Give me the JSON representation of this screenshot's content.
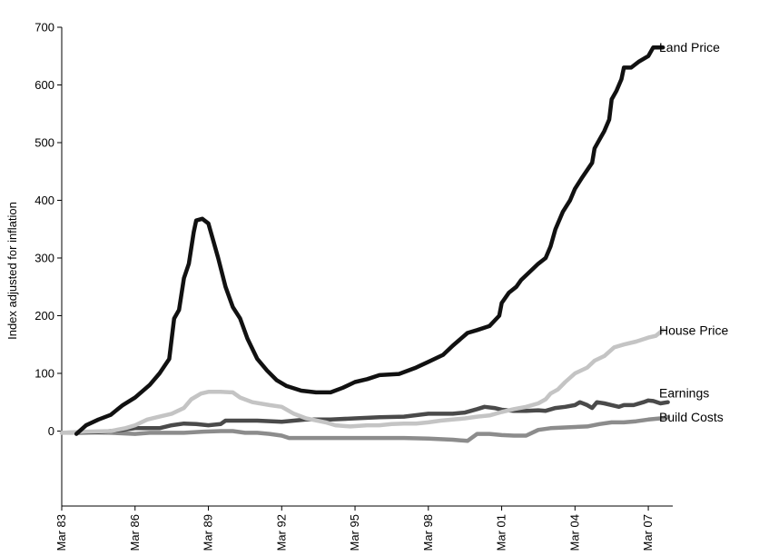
{
  "chart_data": {
    "type": "line",
    "ylabel": "Index adjusted for inflation",
    "ylim": [
      -130,
      700
    ],
    "yticks": [
      0,
      100,
      200,
      300,
      400,
      500,
      600,
      700
    ],
    "xlim": [
      1983.0,
      2008.0
    ],
    "xticks": [
      {
        "label": "Mar 83",
        "value": 1983.0
      },
      {
        "label": "Mar 86",
        "value": 1986.0
      },
      {
        "label": "Mar 89",
        "value": 1989.0
      },
      {
        "label": "Mar 92",
        "value": 1992.0
      },
      {
        "label": "Mar 95",
        "value": 1995.0
      },
      {
        "label": "Mar 98",
        "value": 1998.0
      },
      {
        "label": "Mar 01",
        "value": 2001.0
      },
      {
        "label": "Mar 04",
        "value": 2004.0
      },
      {
        "label": "Mar 07",
        "value": 2007.0
      }
    ],
    "series": [
      {
        "name": "Land Price",
        "color": "#111111",
        "width": 4.5,
        "points": [
          [
            1983.6,
            -5
          ],
          [
            1984.0,
            10
          ],
          [
            1984.5,
            20
          ],
          [
            1985.0,
            28
          ],
          [
            1985.5,
            45
          ],
          [
            1986.0,
            58
          ],
          [
            1986.6,
            80
          ],
          [
            1987.0,
            100
          ],
          [
            1987.4,
            125
          ],
          [
            1987.6,
            195
          ],
          [
            1987.8,
            210
          ],
          [
            1988.0,
            265
          ],
          [
            1988.2,
            290
          ],
          [
            1988.4,
            345
          ],
          [
            1988.5,
            365
          ],
          [
            1988.75,
            368
          ],
          [
            1989.0,
            360
          ],
          [
            1989.2,
            330
          ],
          [
            1989.4,
            300
          ],
          [
            1989.7,
            250
          ],
          [
            1990.0,
            215
          ],
          [
            1990.3,
            195
          ],
          [
            1990.6,
            160
          ],
          [
            1991.0,
            125
          ],
          [
            1991.4,
            105
          ],
          [
            1991.8,
            88
          ],
          [
            1992.2,
            78
          ],
          [
            1992.8,
            70
          ],
          [
            1993.4,
            67
          ],
          [
            1994.0,
            67
          ],
          [
            1994.5,
            75
          ],
          [
            1995.0,
            85
          ],
          [
            1995.5,
            90
          ],
          [
            1996.0,
            97
          ],
          [
            1996.8,
            99
          ],
          [
            1997.5,
            110
          ],
          [
            1998.0,
            120
          ],
          [
            1998.6,
            132
          ],
          [
            1999.0,
            148
          ],
          [
            1999.6,
            170
          ],
          [
            2000.0,
            175
          ],
          [
            2000.5,
            182
          ],
          [
            2000.9,
            200
          ],
          [
            2001.0,
            222
          ],
          [
            2001.3,
            240
          ],
          [
            2001.6,
            250
          ],
          [
            2001.8,
            262
          ],
          [
            2002.0,
            270
          ],
          [
            2002.2,
            278
          ],
          [
            2002.5,
            290
          ],
          [
            2002.8,
            300
          ],
          [
            2003.0,
            320
          ],
          [
            2003.2,
            350
          ],
          [
            2003.5,
            380
          ],
          [
            2003.8,
            400
          ],
          [
            2004.0,
            420
          ],
          [
            2004.3,
            440
          ],
          [
            2004.7,
            465
          ],
          [
            2004.8,
            490
          ],
          [
            2005.0,
            505
          ],
          [
            2005.2,
            520
          ],
          [
            2005.4,
            540
          ],
          [
            2005.5,
            575
          ],
          [
            2005.7,
            590
          ],
          [
            2005.9,
            610
          ],
          [
            2006.0,
            630
          ],
          [
            2006.3,
            630
          ],
          [
            2006.6,
            640
          ],
          [
            2007.0,
            650
          ],
          [
            2007.2,
            665
          ],
          [
            2007.6,
            665
          ]
        ]
      },
      {
        "name": "House Price",
        "color": "#c4c4c4",
        "width": 4.5,
        "points": [
          [
            1983.0,
            -3
          ],
          [
            1984.0,
            -1
          ],
          [
            1985.0,
            0
          ],
          [
            1985.6,
            5
          ],
          [
            1986.0,
            10
          ],
          [
            1986.5,
            20
          ],
          [
            1987.0,
            25
          ],
          [
            1987.5,
            30
          ],
          [
            1988.0,
            40
          ],
          [
            1988.3,
            55
          ],
          [
            1988.7,
            65
          ],
          [
            1989.0,
            68
          ],
          [
            1989.5,
            68
          ],
          [
            1990.0,
            67
          ],
          [
            1990.3,
            58
          ],
          [
            1990.8,
            50
          ],
          [
            1991.5,
            45
          ],
          [
            1992.0,
            42
          ],
          [
            1992.5,
            30
          ],
          [
            1993.0,
            22
          ],
          [
            1993.8,
            15
          ],
          [
            1994.2,
            10
          ],
          [
            1994.8,
            8
          ],
          [
            1995.5,
            10
          ],
          [
            1996.0,
            10
          ],
          [
            1996.5,
            12
          ],
          [
            1997.0,
            13
          ],
          [
            1997.5,
            13
          ],
          [
            1998.0,
            15
          ],
          [
            1998.5,
            18
          ],
          [
            1999.0,
            20
          ],
          [
            1999.5,
            22
          ],
          [
            2000.0,
            25
          ],
          [
            2000.5,
            27
          ],
          [
            2001.0,
            33
          ],
          [
            2001.5,
            38
          ],
          [
            2002.0,
            42
          ],
          [
            2002.5,
            48
          ],
          [
            2002.8,
            55
          ],
          [
            2003.0,
            65
          ],
          [
            2003.3,
            72
          ],
          [
            2003.6,
            85
          ],
          [
            2004.0,
            100
          ],
          [
            2004.5,
            110
          ],
          [
            2004.8,
            122
          ],
          [
            2005.2,
            130
          ],
          [
            2005.6,
            145
          ],
          [
            2006.0,
            150
          ],
          [
            2006.5,
            155
          ],
          [
            2007.0,
            162
          ],
          [
            2007.3,
            165
          ],
          [
            2007.6,
            175
          ]
        ]
      },
      {
        "name": "Earnings",
        "color": "#4a4a4a",
        "width": 4.5,
        "points": [
          [
            1983.6,
            -3
          ],
          [
            1984.5,
            -2
          ],
          [
            1985.0,
            0
          ],
          [
            1985.5,
            2
          ],
          [
            1986.0,
            5
          ],
          [
            1986.6,
            5
          ],
          [
            1987.0,
            5
          ],
          [
            1987.5,
            10
          ],
          [
            1988.0,
            13
          ],
          [
            1988.5,
            12
          ],
          [
            1989.0,
            10
          ],
          [
            1989.5,
            12
          ],
          [
            1989.7,
            18
          ],
          [
            1990.5,
            18
          ],
          [
            1991.0,
            18
          ],
          [
            1992.0,
            16
          ],
          [
            1992.5,
            18
          ],
          [
            1993.0,
            20
          ],
          [
            1994.0,
            20
          ],
          [
            1995.0,
            22
          ],
          [
            1996.0,
            24
          ],
          [
            1997.0,
            25
          ],
          [
            1998.0,
            30
          ],
          [
            1999.0,
            30
          ],
          [
            1999.5,
            32
          ],
          [
            2000.0,
            38
          ],
          [
            2000.3,
            42
          ],
          [
            2000.7,
            40
          ],
          [
            2001.0,
            37
          ],
          [
            2001.5,
            35
          ],
          [
            2002.0,
            35
          ],
          [
            2002.5,
            36
          ],
          [
            2002.8,
            35
          ],
          [
            2003.2,
            40
          ],
          [
            2003.6,
            42
          ],
          [
            2004.0,
            45
          ],
          [
            2004.2,
            50
          ],
          [
            2004.5,
            45
          ],
          [
            2004.7,
            40
          ],
          [
            2004.9,
            50
          ],
          [
            2005.2,
            48
          ],
          [
            2005.5,
            45
          ],
          [
            2005.8,
            42
          ],
          [
            2006.0,
            45
          ],
          [
            2006.4,
            45
          ],
          [
            2006.8,
            50
          ],
          [
            2007.0,
            53
          ],
          [
            2007.2,
            52
          ],
          [
            2007.5,
            48
          ],
          [
            2007.8,
            50
          ]
        ]
      },
      {
        "name": "Build Costs",
        "color": "#8c8c8c",
        "width": 4.5,
        "points": [
          [
            1983.0,
            -3
          ],
          [
            1984.0,
            -2
          ],
          [
            1985.0,
            -3
          ],
          [
            1986.0,
            -5
          ],
          [
            1986.6,
            -3
          ],
          [
            1987.5,
            -3
          ],
          [
            1988.0,
            -3
          ],
          [
            1988.8,
            -1
          ],
          [
            1989.5,
            0
          ],
          [
            1990.0,
            0
          ],
          [
            1990.5,
            -3
          ],
          [
            1991.0,
            -3
          ],
          [
            1991.5,
            -5
          ],
          [
            1992.0,
            -8
          ],
          [
            1992.3,
            -12
          ],
          [
            1993.0,
            -12
          ],
          [
            1994.0,
            -12
          ],
          [
            1995.0,
            -12
          ],
          [
            1996.0,
            -12
          ],
          [
            1997.0,
            -12
          ],
          [
            1998.0,
            -13
          ],
          [
            1999.0,
            -15
          ],
          [
            1999.6,
            -17
          ],
          [
            2000.0,
            -5
          ],
          [
            2000.5,
            -5
          ],
          [
            2001.0,
            -7
          ],
          [
            2001.5,
            -8
          ],
          [
            2002.0,
            -8
          ],
          [
            2002.5,
            2
          ],
          [
            2003.0,
            5
          ],
          [
            2003.5,
            6
          ],
          [
            2004.0,
            7
          ],
          [
            2004.5,
            8
          ],
          [
            2005.0,
            12
          ],
          [
            2005.5,
            15
          ],
          [
            2006.0,
            15
          ],
          [
            2006.5,
            17
          ],
          [
            2007.0,
            20
          ],
          [
            2007.5,
            22
          ],
          [
            2007.8,
            24
          ]
        ]
      }
    ],
    "labels": [
      {
        "series": "Land Price",
        "text": "Land Price"
      },
      {
        "series": "House Price",
        "text": "House Price"
      },
      {
        "series": "Earnings",
        "text": "Earnings"
      },
      {
        "series": "Build Costs",
        "text": "Build Costs"
      }
    ]
  }
}
